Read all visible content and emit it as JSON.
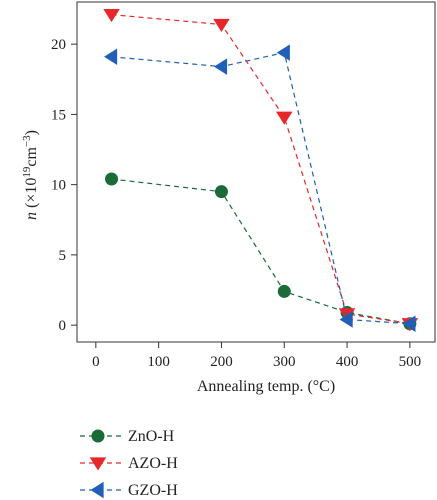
{
  "chart_data": {
    "type": "line",
    "x": [
      25,
      200,
      300,
      400,
      500
    ],
    "xlabel": "Annealing temp. (°C)",
    "ylabel_var": "n",
    "ylabel_prefix": " (×10",
    "ylabel_exp": "19",
    "ylabel_unit": "cm",
    "ylabel_unit_exp": "−3",
    "ylabel_close": ")",
    "xlim": [
      -30,
      540
    ],
    "ylim": [
      -1.2,
      23
    ],
    "xticks": [
      0,
      100,
      200,
      300,
      400,
      500
    ],
    "yticks": [
      0,
      5,
      10,
      15,
      20
    ],
    "xtick_labels": [
      "0",
      "100",
      "200",
      "300",
      "400",
      "500"
    ],
    "ytick_labels": [
      "0",
      "5",
      "10",
      "15",
      "20"
    ],
    "grid": false,
    "legend_position": "bottom-left, below plot",
    "series": [
      {
        "name": "ZnO-H",
        "values": [
          10.4,
          9.5,
          2.4,
          0.9,
          0.1
        ],
        "color": "#1b6b38",
        "marker": "circle"
      },
      {
        "name": "AZO-H",
        "values": [
          22.1,
          21.4,
          14.8,
          0.8,
          0.1
        ],
        "color": "#e8272b",
        "marker": "triangle-down"
      },
      {
        "name": "GZO-H",
        "values": [
          19.1,
          18.4,
          19.4,
          0.4,
          0.1
        ],
        "color": "#1f5fb5",
        "marker": "triangle-left"
      }
    ]
  }
}
